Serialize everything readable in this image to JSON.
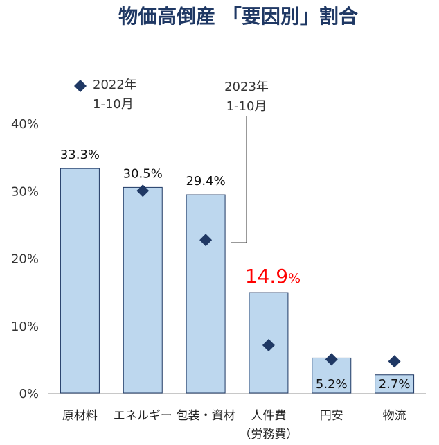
{
  "chart_data": {
    "type": "bar",
    "title": "物価高倒産 「要因別」割合",
    "categories": [
      "原材料",
      "エネルギー",
      "包装・資材",
      "人件費",
      "円安",
      "物流"
    ],
    "category_notes": [
      "",
      "",
      "",
      "（労務費）",
      "",
      ""
    ],
    "y_ticks": [
      "0%",
      "10%",
      "20%",
      "30%",
      "40%"
    ],
    "ylim": [
      0,
      40
    ],
    "series": [
      {
        "name": "2023年 1-10月",
        "legend_lines": [
          "2023年",
          "1-10月"
        ],
        "values": [
          33.3,
          30.5,
          29.4,
          14.9,
          5.2,
          2.7
        ],
        "labels": [
          "33.3%",
          "30.5%",
          "29.4%",
          "14.9",
          "5.2%",
          "2.7%"
        ],
        "highlight_suffix": "%",
        "color": "#bdd7ee",
        "border": "#1f3864"
      },
      {
        "name": "2022年 1-10月",
        "legend_lines": [
          "2022年",
          "1-10月"
        ],
        "values": [
          null,
          30.0,
          22.7,
          7.1,
          5.0,
          4.7
        ],
        "color": "#1f3864"
      }
    ],
    "highlight_index": 3,
    "highlight_color": "#ff0000",
    "grid": false
  }
}
